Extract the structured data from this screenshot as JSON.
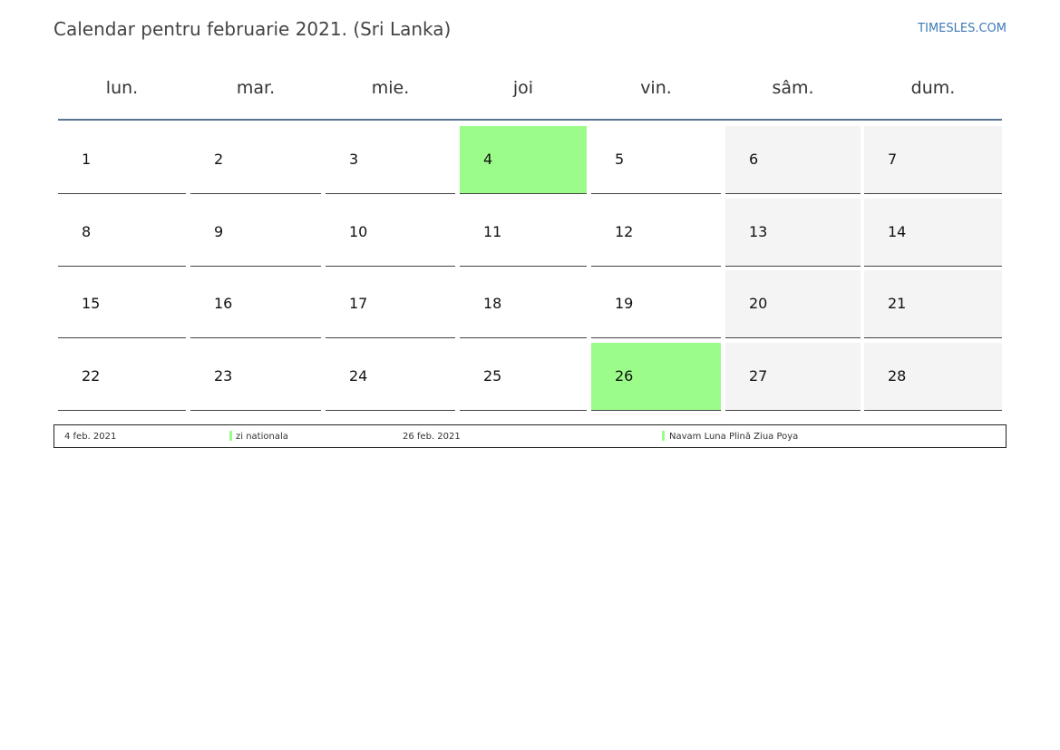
{
  "header": {
    "title": "Calendar pentru februarie 2021. (Sri Lanka)",
    "brand": "TIMESLES.COM"
  },
  "weekdays": [
    "lun.",
    "mar.",
    "mie.",
    "joi",
    "vin.",
    "sâm.",
    "dum."
  ],
  "weeks": [
    [
      "1",
      "2",
      "3",
      "4",
      "5",
      "6",
      "7"
    ],
    [
      "8",
      "9",
      "10",
      "11",
      "12",
      "13",
      "14"
    ],
    [
      "15",
      "16",
      "17",
      "18",
      "19",
      "20",
      "21"
    ],
    [
      "22",
      "23",
      "24",
      "25",
      "26",
      "27",
      "28"
    ]
  ],
  "highlight_days": [
    "4",
    "26"
  ],
  "colors": {
    "holiday": "#9cfc8a",
    "weekend": "#f4f4f4",
    "brand": "#3d7ab8",
    "header_rule": "#5a7493"
  },
  "legend": [
    {
      "date": "4 feb. 2021",
      "name": "zi nationala"
    },
    {
      "date": "26 feb. 2021",
      "name": "Navam Luna Plină Ziua Poya"
    }
  ]
}
